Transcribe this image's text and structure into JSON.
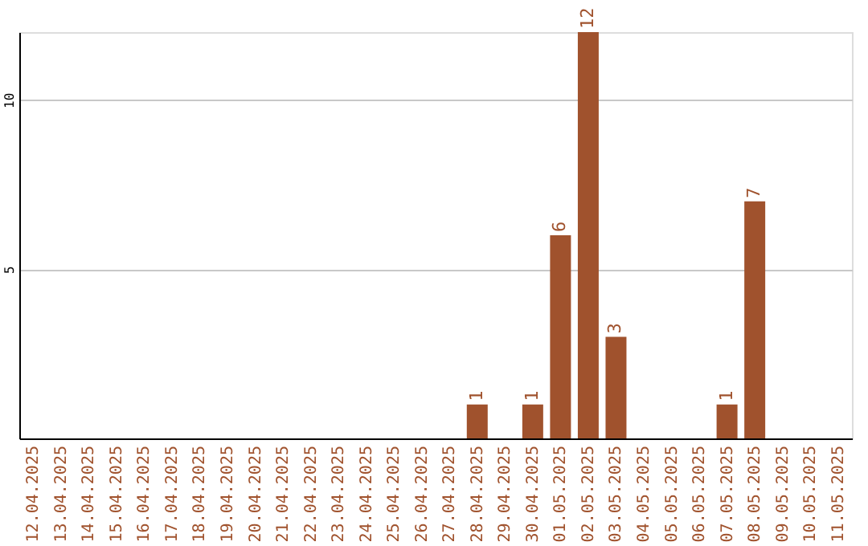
{
  "chart_data": {
    "type": "bar",
    "categories": [
      "12.04.2025",
      "13.04.2025",
      "14.04.2025",
      "15.04.2025",
      "16.04.2025",
      "17.04.2025",
      "18.04.2025",
      "19.04.2025",
      "20.04.2025",
      "21.04.2025",
      "22.04.2025",
      "23.04.2025",
      "24.04.2025",
      "25.04.2025",
      "26.04.2025",
      "27.04.2025",
      "28.04.2025",
      "29.04.2025",
      "30.04.2025",
      "01.05.2025",
      "02.05.2025",
      "03.05.2025",
      "04.05.2025",
      "05.05.2025",
      "06.05.2025",
      "07.05.2025",
      "08.05.2025",
      "09.05.2025",
      "10.05.2025",
      "11.05.2025"
    ],
    "values": [
      0,
      0,
      0,
      0,
      0,
      0,
      0,
      0,
      0,
      0,
      0,
      0,
      0,
      0,
      0,
      0,
      1,
      0,
      1,
      6,
      12,
      3,
      0,
      0,
      0,
      1,
      7,
      0,
      0,
      0
    ],
    "value_labels": [
      null,
      null,
      null,
      null,
      null,
      null,
      null,
      null,
      null,
      null,
      null,
      null,
      null,
      null,
      null,
      null,
      "1",
      null,
      "1",
      "6",
      "12",
      "3",
      null,
      null,
      null,
      "1",
      "7",
      null,
      null,
      null
    ],
    "color": "#a0522d",
    "ylim": [
      0,
      12
    ],
    "yticks": [
      5,
      10
    ],
    "grid": "y"
  }
}
